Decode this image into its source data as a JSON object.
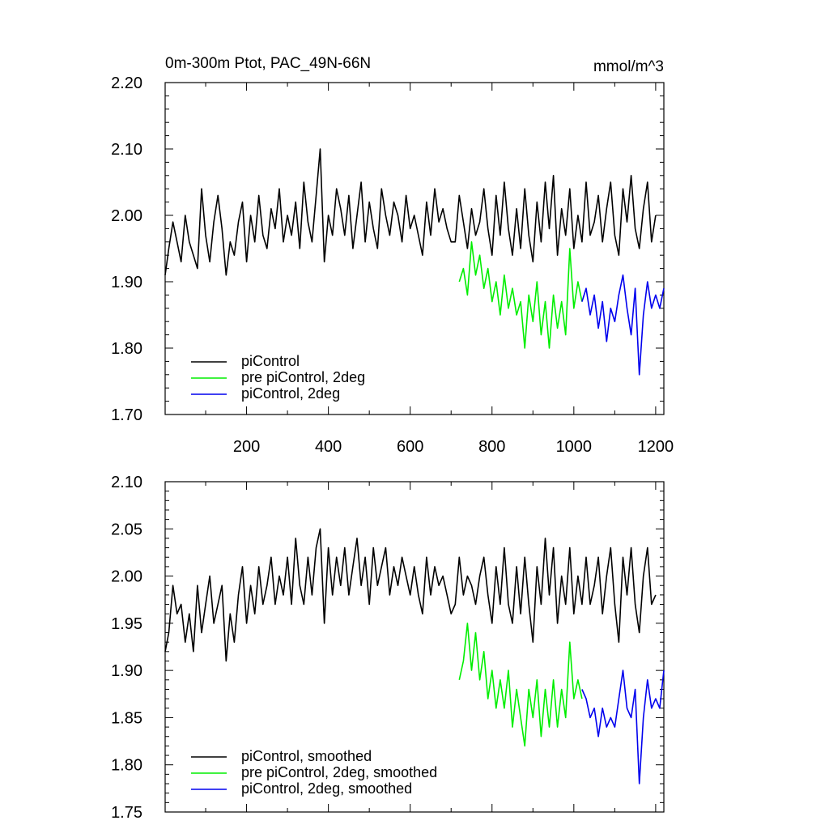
{
  "chart_data": [
    {
      "type": "line",
      "title": "0m-300m Ptot, PAC_49N-66N",
      "units": "mmol/m^3",
      "xlim": [
        1,
        1220
      ],
      "ylim": [
        1.7,
        2.2
      ],
      "x_ticks": [
        200,
        400,
        600,
        800,
        1000,
        1200
      ],
      "x_tick_labels": [
        "200",
        "400",
        "600",
        "800",
        "1000",
        "1200"
      ],
      "y_ticks": [
        1.7,
        1.8,
        1.9,
        2.0,
        2.1,
        2.2
      ],
      "y_tick_labels": [
        "1.70",
        "1.80",
        "1.90",
        "2.00",
        "2.10",
        "2.20"
      ],
      "legend_position": "bottom-left",
      "series": [
        {
          "name": "piControl",
          "color": "#000000",
          "x": [
            1,
            10,
            20,
            30,
            40,
            50,
            60,
            70,
            80,
            90,
            100,
            110,
            120,
            130,
            140,
            150,
            160,
            170,
            180,
            190,
            200,
            210,
            220,
            230,
            240,
            250,
            260,
            270,
            280,
            290,
            300,
            310,
            320,
            330,
            340,
            350,
            360,
            370,
            380,
            390,
            400,
            410,
            420,
            430,
            440,
            450,
            460,
            470,
            480,
            490,
            500,
            510,
            520,
            530,
            540,
            550,
            560,
            570,
            580,
            590,
            600,
            610,
            620,
            630,
            640,
            650,
            660,
            670,
            680,
            690,
            700,
            710,
            720,
            730,
            740,
            750,
            760,
            770,
            780,
            790,
            800,
            810,
            820,
            830,
            840,
            850,
            860,
            870,
            880,
            890,
            900,
            910,
            920,
            930,
            940,
            950,
            960,
            970,
            980,
            990,
            1000,
            1010,
            1020,
            1030,
            1040,
            1050,
            1060,
            1070,
            1080,
            1090,
            1100,
            1110,
            1120,
            1130,
            1140,
            1150,
            1160,
            1170,
            1180,
            1190,
            1200
          ],
          "y": [
            1.91,
            1.95,
            1.99,
            1.96,
            1.93,
            2.0,
            1.96,
            1.94,
            1.92,
            2.04,
            1.97,
            1.93,
            1.99,
            2.03,
            1.98,
            1.91,
            1.96,
            1.94,
            1.99,
            2.02,
            1.93,
            2.0,
            1.96,
            2.03,
            1.97,
            1.95,
            2.01,
            1.98,
            2.04,
            1.96,
            2.0,
            1.97,
            2.02,
            1.95,
            2.05,
            1.99,
            1.96,
            2.03,
            2.1,
            1.93,
            2.0,
            1.97,
            2.04,
            2.01,
            1.97,
            2.03,
            1.95,
            2.0,
            2.05,
            1.96,
            2.02,
            1.98,
            1.95,
            2.04,
            2.0,
            1.97,
            2.02,
            2.0,
            1.96,
            2.03,
            1.98,
            2.0,
            1.97,
            1.94,
            2.02,
            1.97,
            2.04,
            1.99,
            2.01,
            1.98,
            1.96,
            1.96,
            2.03,
            1.99,
            1.95,
            2.01,
            1.97,
            1.99,
            2.04,
            1.98,
            1.94,
            2.03,
            1.97,
            2.05,
            1.98,
            1.94,
            2.01,
            1.95,
            2.04,
            1.97,
            1.93,
            2.02,
            1.96,
            2.05,
            1.98,
            2.06,
            1.94,
            2.01,
            1.97,
            2.04,
            1.95,
            2.0,
            1.96,
            2.05,
            1.97,
            1.99,
            2.03,
            1.96,
            2.01,
            2.05,
            1.97,
            1.94,
            2.04,
            1.99,
            2.06,
            1.98,
            1.95,
            2.01,
            2.05,
            1.96,
            2.0
          ]
        },
        {
          "name": "pre piControl, 2deg",
          "color": "#00ee00",
          "x": [
            720,
            730,
            740,
            750,
            760,
            770,
            780,
            790,
            800,
            810,
            820,
            830,
            840,
            850,
            860,
            870,
            880,
            890,
            900,
            910,
            920,
            930,
            940,
            950,
            960,
            970,
            980,
            990,
            1000,
            1010,
            1020
          ],
          "y": [
            1.9,
            1.92,
            1.88,
            1.96,
            1.91,
            1.94,
            1.89,
            1.92,
            1.87,
            1.9,
            1.85,
            1.91,
            1.86,
            1.89,
            1.85,
            1.87,
            1.8,
            1.88,
            1.84,
            1.9,
            1.82,
            1.87,
            1.8,
            1.88,
            1.83,
            1.87,
            1.82,
            1.95,
            1.86,
            1.9,
            1.87
          ]
        },
        {
          "name": "piControl, 2deg",
          "color": "#0000ee",
          "x": [
            1020,
            1030,
            1040,
            1050,
            1060,
            1070,
            1080,
            1090,
            1100,
            1110,
            1120,
            1130,
            1140,
            1150,
            1160,
            1170,
            1180,
            1190,
            1200,
            1210,
            1220
          ],
          "y": [
            1.87,
            1.89,
            1.85,
            1.88,
            1.83,
            1.87,
            1.81,
            1.86,
            1.84,
            1.88,
            1.91,
            1.86,
            1.82,
            1.89,
            1.76,
            1.85,
            1.9,
            1.86,
            1.88,
            1.86,
            1.89
          ]
        }
      ]
    },
    {
      "type": "line",
      "title": "",
      "units": "",
      "xlim": [
        1,
        1220
      ],
      "ylim": [
        1.75,
        2.1
      ],
      "x_ticks": [
        200,
        400,
        600,
        800,
        1000,
        1200
      ],
      "y_ticks": [
        1.75,
        1.8,
        1.85,
        1.9,
        1.95,
        2.0,
        2.05,
        2.1
      ],
      "y_tick_labels": [
        "1.75",
        "1.80",
        "1.85",
        "1.90",
        "1.95",
        "2.00",
        "2.05",
        "2.10"
      ],
      "legend_position": "bottom-left",
      "series": [
        {
          "name": "piControl, smoothed",
          "color": "#000000",
          "x": [
            1,
            10,
            20,
            30,
            40,
            50,
            60,
            70,
            80,
            90,
            100,
            110,
            120,
            130,
            140,
            150,
            160,
            170,
            180,
            190,
            200,
            210,
            220,
            230,
            240,
            250,
            260,
            270,
            280,
            290,
            300,
            310,
            320,
            330,
            340,
            350,
            360,
            370,
            380,
            390,
            400,
            410,
            420,
            430,
            440,
            450,
            460,
            470,
            480,
            490,
            500,
            510,
            520,
            530,
            540,
            550,
            560,
            570,
            580,
            590,
            600,
            610,
            620,
            630,
            640,
            650,
            660,
            670,
            680,
            690,
            700,
            710,
            720,
            730,
            740,
            750,
            760,
            770,
            780,
            790,
            800,
            810,
            820,
            830,
            840,
            850,
            860,
            870,
            880,
            890,
            900,
            910,
            920,
            930,
            940,
            950,
            960,
            970,
            980,
            990,
            1000,
            1010,
            1020,
            1030,
            1040,
            1050,
            1060,
            1070,
            1080,
            1090,
            1100,
            1110,
            1120,
            1130,
            1140,
            1150,
            1160,
            1170,
            1180,
            1190,
            1200
          ],
          "y": [
            1.92,
            1.94,
            1.99,
            1.96,
            1.97,
            1.93,
            1.96,
            1.92,
            1.99,
            1.94,
            1.97,
            2.0,
            1.95,
            1.97,
            1.99,
            1.91,
            1.96,
            1.93,
            1.98,
            2.01,
            1.95,
            1.99,
            1.96,
            2.01,
            1.97,
            1.99,
            2.02,
            1.97,
            2.0,
            1.98,
            2.02,
            1.97,
            2.04,
            1.99,
            1.97,
            2.02,
            1.98,
            2.03,
            2.05,
            1.95,
            2.03,
            1.98,
            2.02,
            1.99,
            2.03,
            1.98,
            2.01,
            2.04,
            1.99,
            2.02,
            1.97,
            2.03,
            1.99,
            2.01,
            2.03,
            1.98,
            2.01,
            1.99,
            2.02,
            2.0,
            1.98,
            2.01,
            1.98,
            1.96,
            2.02,
            1.98,
            2.01,
            1.99,
            2.0,
            1.98,
            1.96,
            1.97,
            2.02,
            1.98,
            2.0,
            1.99,
            1.97,
            2.0,
            2.02,
            1.98,
            1.95,
            2.01,
            1.97,
            2.03,
            1.97,
            1.95,
            2.01,
            1.96,
            2.02,
            1.97,
            1.93,
            2.01,
            1.97,
            2.04,
            1.98,
            2.03,
            1.95,
            2.0,
            1.97,
            2.03,
            1.96,
            2.0,
            1.97,
            2.02,
            1.97,
            1.99,
            2.02,
            1.96,
            2.0,
            2.03,
            1.97,
            1.93,
            2.02,
            1.98,
            2.03,
            1.97,
            1.94,
            2.0,
            2.03,
            1.97,
            1.98
          ]
        },
        {
          "name": "pre piControl, 2deg, smoothed",
          "color": "#00ee00",
          "x": [
            720,
            730,
            740,
            750,
            760,
            770,
            780,
            790,
            800,
            810,
            820,
            830,
            840,
            850,
            860,
            870,
            880,
            890,
            900,
            910,
            920,
            930,
            940,
            950,
            960,
            970,
            980,
            990,
            1000,
            1010,
            1020
          ],
          "y": [
            1.89,
            1.91,
            1.95,
            1.9,
            1.94,
            1.89,
            1.92,
            1.87,
            1.9,
            1.86,
            1.89,
            1.86,
            1.9,
            1.84,
            1.88,
            1.85,
            1.82,
            1.88,
            1.85,
            1.89,
            1.83,
            1.88,
            1.84,
            1.89,
            1.84,
            1.88,
            1.85,
            1.93,
            1.87,
            1.89,
            1.87
          ]
        },
        {
          "name": "piControl, 2deg, smoothed",
          "color": "#0000ee",
          "x": [
            1020,
            1030,
            1040,
            1050,
            1060,
            1070,
            1080,
            1090,
            1100,
            1110,
            1120,
            1130,
            1140,
            1150,
            1160,
            1170,
            1180,
            1190,
            1200,
            1210,
            1220
          ],
          "y": [
            1.88,
            1.87,
            1.85,
            1.86,
            1.83,
            1.86,
            1.84,
            1.85,
            1.84,
            1.87,
            1.9,
            1.86,
            1.85,
            1.88,
            1.78,
            1.85,
            1.89,
            1.86,
            1.87,
            1.86,
            1.9
          ]
        }
      ]
    }
  ]
}
